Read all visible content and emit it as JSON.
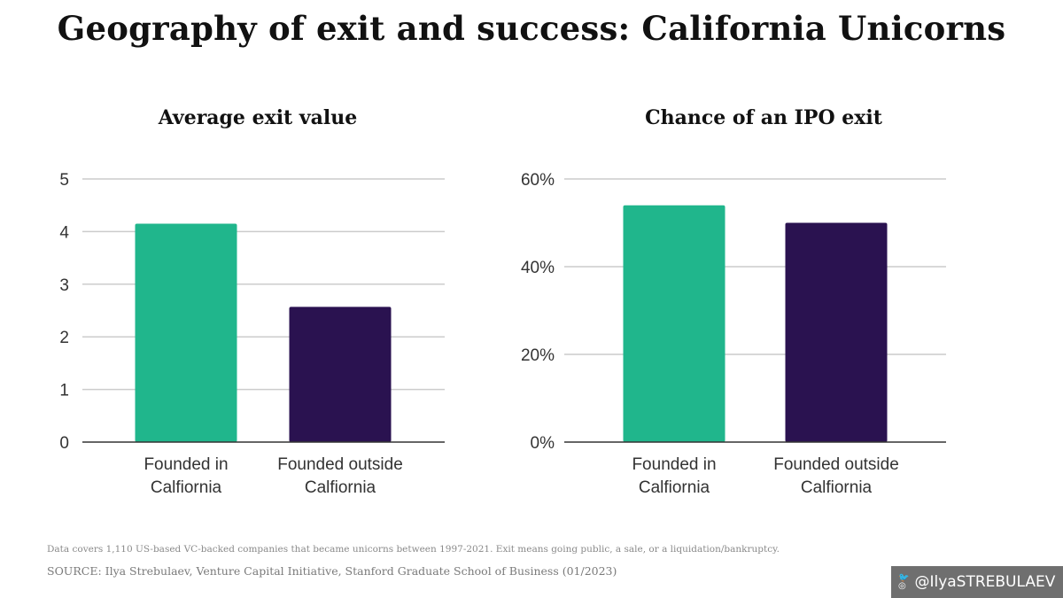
{
  "title": "Geography of exit and success: California Unicorns",
  "chart_data": [
    {
      "type": "bar",
      "title": "Average exit value",
      "categories": [
        [
          "Founded in",
          "Calfiornia"
        ],
        [
          "Founded outside",
          "Calfiornia"
        ]
      ],
      "values": [
        4.15,
        2.57
      ],
      "colors": [
        "#20b68c",
        "#2a1250"
      ],
      "ylim": [
        0,
        5
      ],
      "yticks": [
        0,
        1,
        2,
        3,
        4,
        5
      ],
      "ytick_labels": [
        "0",
        "1",
        "2",
        "3",
        "4",
        "5"
      ],
      "grid": true
    },
    {
      "type": "bar",
      "title": "Chance of an IPO exit",
      "categories": [
        [
          "Founded in",
          "Calfiornia"
        ],
        [
          "Founded outside",
          "Calfiornia"
        ]
      ],
      "values": [
        54,
        50
      ],
      "colors": [
        "#20b68c",
        "#2a1250"
      ],
      "ylim": [
        0,
        60
      ],
      "yticks": [
        0,
        20,
        40,
        60
      ],
      "ytick_labels": [
        "0%",
        "20%",
        "40%",
        "60%"
      ],
      "grid": true
    }
  ],
  "footer": {
    "note": "Data covers 1,110 US-based VC-backed companies that became unicorns between 1997-2021. Exit means going public, a sale, or a liquidation/bankruptcy.",
    "source": "SOURCE: Ilya Strebulaev, Venture Capital Initiative, Stanford Graduate School of Business (01/2023)"
  },
  "badge": {
    "handle": "@IlyaSTREBULAEV",
    "icons": [
      "twitter-icon",
      "instagram-icon"
    ]
  }
}
